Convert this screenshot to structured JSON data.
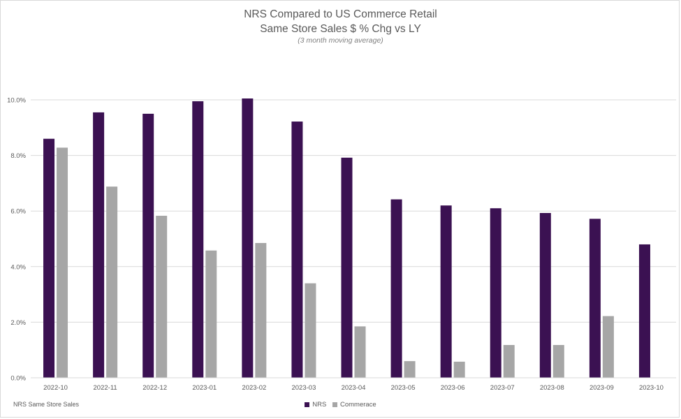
{
  "chart_data": {
    "type": "bar",
    "title_line1": "NRS Compared to US Commerce Retail",
    "title_line2": "Same Store Sales $ % Chg vs LY",
    "subtitle": "(3 month moving average)",
    "categories": [
      "2022-10",
      "2022-11",
      "2022-12",
      "2023-01",
      "2023-02",
      "2023-03",
      "2023-04",
      "2023-05",
      "2023-06",
      "2023-07",
      "2023-08",
      "2023-09",
      "2023-10"
    ],
    "series": [
      {
        "name": "NRS",
        "color": "#3b1152",
        "values": [
          8.6,
          9.55,
          9.5,
          9.95,
          10.05,
          9.22,
          7.92,
          6.42,
          6.2,
          6.1,
          5.93,
          5.72,
          4.8
        ]
      },
      {
        "name": "Commerace",
        "color": "#a6a6a6",
        "values": [
          8.28,
          6.88,
          5.83,
          4.58,
          4.85,
          3.4,
          1.85,
          0.6,
          0.58,
          1.18,
          1.18,
          2.22,
          null
        ]
      }
    ],
    "ylim": [
      0,
      10
    ],
    "yticks": [
      "0.0%",
      "2.0%",
      "4.0%",
      "6.0%",
      "8.0%",
      "10.0%"
    ],
    "grid": true,
    "legend_position": "bottom-center",
    "footnote": "NRS Same Store Sales"
  }
}
